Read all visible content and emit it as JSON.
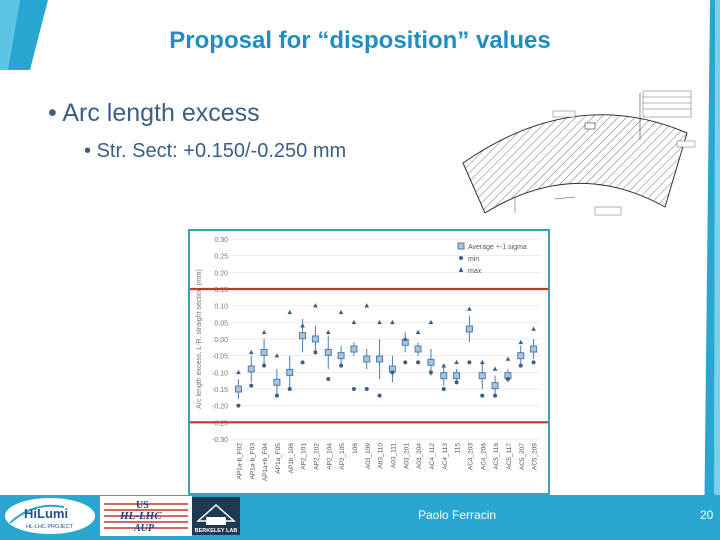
{
  "slide": {
    "title": "Proposal for “disposition” values",
    "bullets": [
      {
        "level": 1,
        "text": "Arc length excess"
      },
      {
        "level": 2,
        "text": "Str. Sect: +0.150/-0.250 mm"
      }
    ],
    "author": "Paolo Ferracin",
    "page_number": "20"
  },
  "logos": {
    "hilumi": {
      "main": "HiLumi",
      "sub": "HL-LHC PROJECT"
    },
    "us": {
      "line1": "US",
      "line2": "HL-LHC",
      "line3": "AUP"
    },
    "berkeley": {
      "text": "BERKELEY LAB"
    }
  },
  "colors": {
    "accent": "#1f8fc3",
    "text": "#3b5f82",
    "footer": "#2aa7d1",
    "limit_line": "#c0392b",
    "marker": "#4a7cab"
  },
  "chart_data": {
    "type": "scatter",
    "ylabel": "Arc length excess, L-R, straight section (mm)",
    "ylim": [
      -0.3,
      0.3
    ],
    "yticks": [
      "0.30",
      "0.25",
      "0.20",
      "0.15",
      "0.10",
      "0.05",
      "0.00",
      "-0.05",
      "-0.10",
      "-0.15",
      "-0.20",
      "-0.25",
      "-0.30"
    ],
    "legend": [
      "Average +-1 sigma",
      "min",
      "max"
    ],
    "legend_position": "top-right",
    "categories": [
      "AP1a-b_F02",
      "AP1a-b_F03",
      "AP1a+b_F04",
      "AP1a_F05",
      "AP1b_106",
      "AP2_101",
      "AP2_102",
      "AP2_104",
      "AP2_105",
      "106",
      "A03_109",
      "A03_110",
      "A03_111",
      "A03_201",
      "A03_204",
      "AC4_112",
      "AC4_113",
      "115",
      "AC4_203",
      "AC4_206",
      "AC5_116",
      "AC5_117",
      "AC5_207",
      "AC5_209"
    ],
    "series": [
      {
        "name": "Average +-1 sigma",
        "values": [
          -0.15,
          -0.09,
          -0.04,
          -0.13,
          -0.1,
          0.01,
          0.0,
          -0.04,
          -0.05,
          -0.03,
          -0.06,
          -0.06,
          -0.09,
          -0.01,
          -0.03,
          -0.07,
          -0.11,
          -0.11,
          0.03,
          -0.11,
          -0.14,
          -0.11,
          -0.05,
          -0.03
        ],
        "sigma": [
          0.03,
          0.04,
          0.04,
          0.04,
          0.05,
          0.05,
          0.04,
          0.05,
          0.03,
          0.02,
          0.03,
          0.06,
          0.04,
          0.03,
          0.02,
          0.04,
          0.03,
          0.02,
          0.04,
          0.04,
          0.03,
          0.02,
          0.03,
          0.03
        ]
      },
      {
        "name": "min",
        "values": [
          -0.2,
          -0.14,
          -0.08,
          -0.17,
          -0.15,
          -0.07,
          -0.04,
          -0.12,
          -0.08,
          -0.15,
          -0.15,
          -0.17,
          -0.1,
          -0.07,
          -0.07,
          -0.1,
          -0.15,
          -0.13,
          -0.07,
          -0.17,
          -0.17,
          -0.12,
          -0.08,
          -0.07
        ]
      },
      {
        "name": "max",
        "values": [
          -0.1,
          -0.04,
          0.02,
          -0.05,
          0.08,
          0.04,
          0.1,
          0.02,
          0.08,
          0.05,
          0.1,
          0.05,
          0.05,
          0.0,
          0.02,
          0.05,
          -0.08,
          -0.07,
          0.09,
          -0.07,
          -0.09,
          -0.06,
          -0.01,
          0.03
        ]
      }
    ],
    "limit_lines": [
      0.15,
      -0.25
    ],
    "grid": true
  }
}
